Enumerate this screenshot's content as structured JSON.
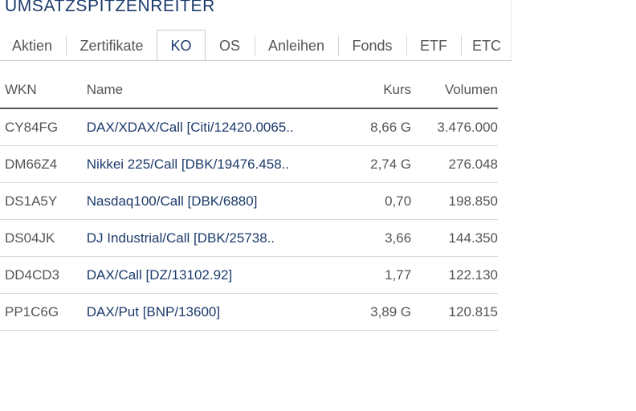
{
  "widget": {
    "title": "UMSATZSPITZENREITER"
  },
  "tabs": [
    {
      "label": "Aktien",
      "active": false
    },
    {
      "label": "Zertifikate",
      "active": false
    },
    {
      "label": "KO",
      "active": true
    },
    {
      "label": "OS",
      "active": false
    },
    {
      "label": "Anleihen",
      "active": false
    },
    {
      "label": "Fonds",
      "active": false
    },
    {
      "label": "ETF",
      "active": false
    },
    {
      "label": "ETC",
      "active": false
    }
  ],
  "table": {
    "headers": {
      "wkn": "WKN",
      "name": "Name",
      "kurs": "Kurs",
      "volumen": "Volumen"
    },
    "rows": [
      {
        "wkn": "CY84FG",
        "name": "DAX/XDAX/Call [Citi/12420.0065..",
        "kurs": "8,66 G",
        "volumen": "3.476.000"
      },
      {
        "wkn": "DM66Z4",
        "name": "Nikkei 225/Call [DBK/19476.458..",
        "kurs": "2,74 G",
        "volumen": "276.048"
      },
      {
        "wkn": "DS1A5Y",
        "name": "Nasdaq100/Call [DBK/6880]",
        "kurs": "0,70",
        "volumen": "198.850"
      },
      {
        "wkn": "DS04JK",
        "name": "DJ Industrial/Call [DBK/25738..",
        "kurs": "3,66",
        "volumen": "144.350"
      },
      {
        "wkn": "DD4CD3",
        "name": "DAX/Call [DZ/13102.92]",
        "kurs": "1,77",
        "volumen": "122.130"
      },
      {
        "wkn": "PP1C6G",
        "name": "DAX/Put [BNP/13600]",
        "kurs": "3,89 G",
        "volumen": "120.815"
      }
    ]
  },
  "colors": {
    "accent": "#1b3a6b",
    "text": "#555555",
    "divider": "#d8d8d8"
  }
}
